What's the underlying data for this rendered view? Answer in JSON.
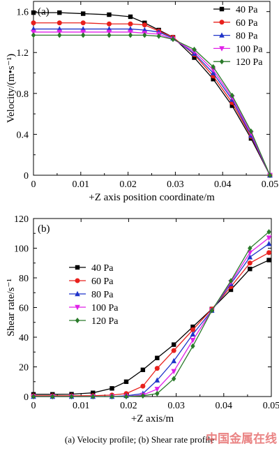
{
  "caption": "(a) Velocity profile; (b) Shear rate profile",
  "watermark": "中国金属在线",
  "colors": {
    "40 Pa": "#000000",
    "60 Pa": "#e8201c",
    "80 Pa": "#1f33c9",
    "100 Pa": "#e020e8",
    "120 Pa": "#2a7a2a"
  },
  "chart_data": [
    {
      "type": "line",
      "panel_label": "(a)",
      "xlabel": "+Z axis position coordinate/m",
      "ylabel": "Velocity/(m•s⁻¹)",
      "xlim": [
        0,
        0.05
      ],
      "ylim": [
        0,
        1.7
      ],
      "xticks": [
        0,
        0.01,
        0.02,
        0.03,
        0.04,
        0.05
      ],
      "xtick_labels": [
        "0",
        "0.01",
        "0.02",
        "0.03",
        "0.04",
        "0.05"
      ],
      "yticks": [
        0,
        0.4,
        0.8,
        1.2,
        1.6
      ],
      "ytick_labels": [
        "0",
        "0.4",
        "0.8",
        "1.2",
        "1.6"
      ],
      "legend_position": "top-right",
      "x": [
        0,
        0.0055,
        0.0105,
        0.016,
        0.0205,
        0.0235,
        0.0265,
        0.0295,
        0.034,
        0.038,
        0.042,
        0.046,
        0.05
      ],
      "series": [
        {
          "name": "40 Pa",
          "marker": "square",
          "values": [
            1.59,
            1.59,
            1.58,
            1.57,
            1.55,
            1.49,
            1.42,
            1.35,
            1.15,
            0.94,
            0.68,
            0.36,
            0
          ]
        },
        {
          "name": "60 Pa",
          "marker": "circle",
          "values": [
            1.49,
            1.49,
            1.49,
            1.48,
            1.48,
            1.47,
            1.41,
            1.35,
            1.18,
            0.97,
            0.71,
            0.38,
            0
          ]
        },
        {
          "name": "80 Pa",
          "marker": "triangle-up",
          "values": [
            1.43,
            1.43,
            1.43,
            1.43,
            1.43,
            1.42,
            1.4,
            1.34,
            1.19,
            1.0,
            0.74,
            0.39,
            0
          ]
        },
        {
          "name": "100 Pa",
          "marker": "triangle-down",
          "values": [
            1.4,
            1.4,
            1.4,
            1.4,
            1.4,
            1.39,
            1.38,
            1.33,
            1.21,
            1.03,
            0.76,
            0.41,
            0
          ]
        },
        {
          "name": "120 Pa",
          "marker": "diamond",
          "values": [
            1.37,
            1.37,
            1.37,
            1.37,
            1.37,
            1.37,
            1.36,
            1.33,
            1.23,
            1.06,
            0.78,
            0.43,
            0
          ]
        }
      ]
    },
    {
      "type": "line",
      "panel_label": "(b)",
      "xlabel": "+Z axis/m",
      "ylabel": "Shear rate/s⁻¹",
      "xlim": [
        0,
        0.05
      ],
      "ylim": [
        0,
        120
      ],
      "xticks": [
        0,
        0.01,
        0.02,
        0.03,
        0.04,
        0.05
      ],
      "xtick_labels": [
        "0",
        "0.01",
        "0.02",
        "0.03",
        "0.04",
        "0.05"
      ],
      "yticks": [
        0,
        20,
        40,
        60,
        80,
        100,
        120
      ],
      "ytick_labels": [
        "0",
        "20",
        "40",
        "60",
        "80",
        "100",
        "120"
      ],
      "legend_position": "center-left",
      "x": [
        0,
        0.004,
        0.008,
        0.0125,
        0.0165,
        0.0195,
        0.023,
        0.026,
        0.0295,
        0.0335,
        0.0375,
        0.0415,
        0.0455,
        0.0495
      ],
      "series": [
        {
          "name": "40 Pa",
          "marker": "square",
          "values": [
            1.5,
            1.5,
            1.6,
            2.5,
            5.5,
            10,
            18,
            26,
            35,
            47,
            59,
            72,
            86,
            92
          ]
        },
        {
          "name": "60 Pa",
          "marker": "circle",
          "values": [
            0.5,
            0.5,
            0.5,
            0.6,
            1,
            2,
            7,
            19,
            31,
            45,
            59,
            74,
            90,
            97
          ]
        },
        {
          "name": "80 Pa",
          "marker": "triangle-up",
          "values": [
            0,
            0,
            0,
            0,
            0,
            0.5,
            2,
            11,
            24,
            42,
            58,
            76,
            94,
            103
          ]
        },
        {
          "name": "100 Pa",
          "marker": "triangle-down",
          "values": [
            0,
            0,
            0,
            0,
            0,
            0,
            1,
            5,
            17,
            38,
            58,
            77,
            97,
            107
          ]
        },
        {
          "name": "120 Pa",
          "marker": "diamond",
          "values": [
            0,
            0,
            0,
            0,
            0,
            0,
            0.5,
            2,
            12,
            34,
            58,
            78,
            100,
            111
          ]
        }
      ]
    }
  ]
}
